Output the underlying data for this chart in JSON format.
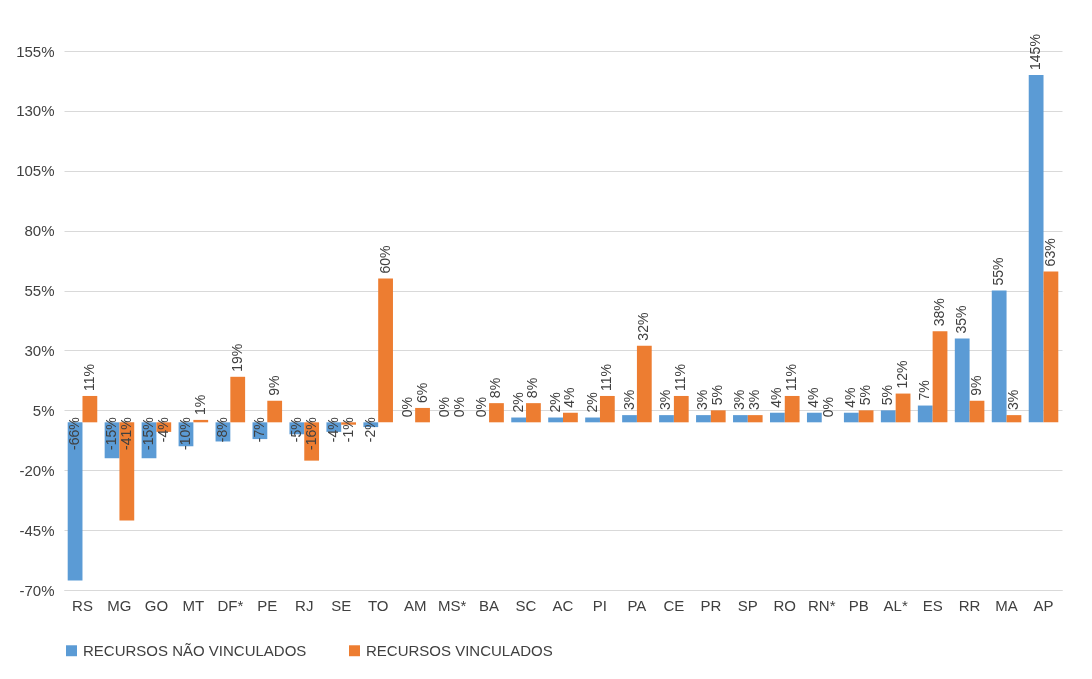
{
  "chart_data": {
    "type": "bar",
    "categories": [
      "RS",
      "MG",
      "GO",
      "MT",
      "DF*",
      "PE",
      "RJ",
      "SE",
      "TO",
      "AM",
      "MS*",
      "BA",
      "SC",
      "AC",
      "PI",
      "PA",
      "CE",
      "PR",
      "SP",
      "RO",
      "RN*",
      "PB",
      "AL*",
      "ES",
      "RR",
      "MA",
      "AP"
    ],
    "series": [
      {
        "name": "RECURSOS NÃO VINCULADOS",
        "color": "#5b9bd5",
        "values": [
          -66,
          -15,
          -15,
          -10,
          -8,
          -7,
          -5,
          -4,
          -2,
          0,
          0,
          0,
          2,
          2,
          2,
          3,
          3,
          3,
          3,
          4,
          4,
          4,
          5,
          7,
          35,
          55,
          145
        ],
        "value_labels": [
          "-66%",
          "-15%",
          "-15%",
          "-10%",
          "-8%",
          "-7%",
          "-5%",
          "-4%",
          "-2%",
          "0%",
          "0%",
          "0%",
          "2%",
          "2%",
          "2%",
          "3%",
          "3%",
          "3%",
          "3%",
          "4%",
          "4%",
          "4%",
          "5%",
          "7%",
          "35%",
          "55%",
          "145%"
        ]
      },
      {
        "name": "RECURSOS VINCULADOS",
        "color": "#ed7d31",
        "values": [
          11,
          -41,
          -4,
          1,
          19,
          9,
          -16,
          -1,
          60,
          6,
          0,
          8,
          8,
          4,
          11,
          32,
          11,
          5,
          3,
          11,
          0,
          5,
          12,
          38,
          9,
          3,
          63
        ],
        "value_labels": [
          "11%",
          "-41%",
          "-4%",
          "1%",
          "19%",
          "9%",
          "-16%",
          "-1%",
          "60%",
          "6%",
          "0%",
          "8%",
          "8%",
          "4%",
          "11%",
          "32%",
          "11%",
          "5%",
          "3%",
          "11%",
          "0%",
          "5%",
          "12%",
          "38%",
          "9%",
          "3%",
          "63%"
        ]
      }
    ],
    "ylim": [
      -70,
      155
    ],
    "yticks": [
      {
        "value": -70,
        "label": "-70%"
      },
      {
        "value": -45,
        "label": "-45%"
      },
      {
        "value": -20,
        "label": "-20%"
      },
      {
        "value": 5,
        "label": "5%"
      },
      {
        "value": 30,
        "label": "30%"
      },
      {
        "value": 55,
        "label": "55%"
      },
      {
        "value": 80,
        "label": "80%"
      },
      {
        "value": 105,
        "label": "105%"
      },
      {
        "value": 130,
        "label": "130%"
      },
      {
        "value": 155,
        "label": "155%"
      }
    ],
    "grid": "y",
    "legend": "bottom"
  }
}
